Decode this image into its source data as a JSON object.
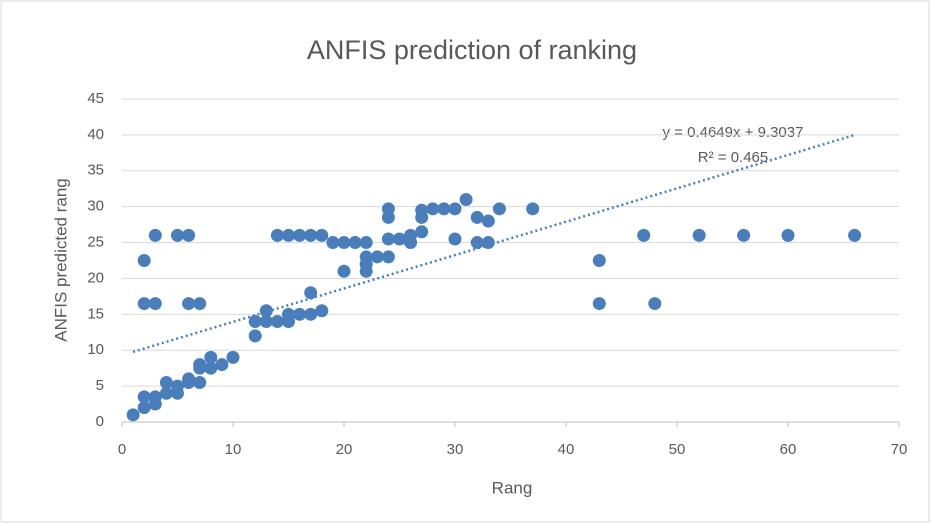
{
  "chart_data": {
    "type": "scatter",
    "title": "ANFIS prediction of ranking",
    "x_label": "Rang",
    "y_label": "ANFIS predicted rang",
    "xlim": [
      0,
      70
    ],
    "xticks": [
      0,
      10,
      20,
      30,
      40,
      50,
      60,
      70
    ],
    "ylim": [
      0,
      45
    ],
    "yticks": [
      0,
      5,
      10,
      15,
      20,
      25,
      30,
      35,
      40,
      45
    ],
    "grid": true,
    "series": [
      {
        "color": "#4a7ebb",
        "x": [
          1,
          2,
          2,
          3,
          3,
          4,
          4,
          5,
          5,
          6,
          6,
          7,
          7,
          7,
          8,
          8,
          9,
          10,
          2,
          3,
          2,
          3,
          5,
          6,
          6,
          7,
          12,
          12,
          13,
          13,
          14,
          15,
          15,
          16,
          17,
          17,
          18,
          14,
          15,
          16,
          17,
          18,
          19,
          20,
          20,
          21,
          22,
          22,
          22,
          22,
          23,
          24,
          24,
          24,
          24,
          25,
          26,
          26,
          27,
          27,
          27,
          28,
          29,
          30,
          30,
          31,
          32,
          32,
          33,
          33,
          34,
          37,
          43,
          43,
          47,
          48,
          52,
          56,
          60,
          66
        ],
        "values": [
          1,
          2,
          3.5,
          2.5,
          3.5,
          4,
          5.5,
          4,
          5,
          6,
          5.5,
          5.5,
          7.5,
          8,
          7.5,
          9,
          8,
          9,
          16.5,
          16.5,
          22.5,
          26,
          26,
          26,
          16.5,
          16.5,
          12,
          14,
          14,
          15.5,
          14,
          14,
          15,
          15,
          15,
          18,
          15.5,
          26,
          26,
          26,
          26,
          26,
          25,
          25,
          21,
          25,
          25,
          23,
          21,
          22,
          23,
          23,
          25.5,
          28.5,
          29.7,
          25.5,
          25,
          26,
          26.5,
          28.5,
          29.5,
          29.7,
          29.7,
          29.7,
          25.5,
          31,
          28.5,
          25,
          28,
          25,
          29.7,
          29.7,
          22.5,
          16.5,
          26,
          16.5,
          26,
          26,
          26,
          26
        ]
      }
    ],
    "trendline": {
      "slope": 0.4649,
      "intercept": 9.3037,
      "color": "#4a7ebb",
      "equation": "y = 0.4649x + 9.3037",
      "r_squared": "R² = 0.465"
    }
  }
}
